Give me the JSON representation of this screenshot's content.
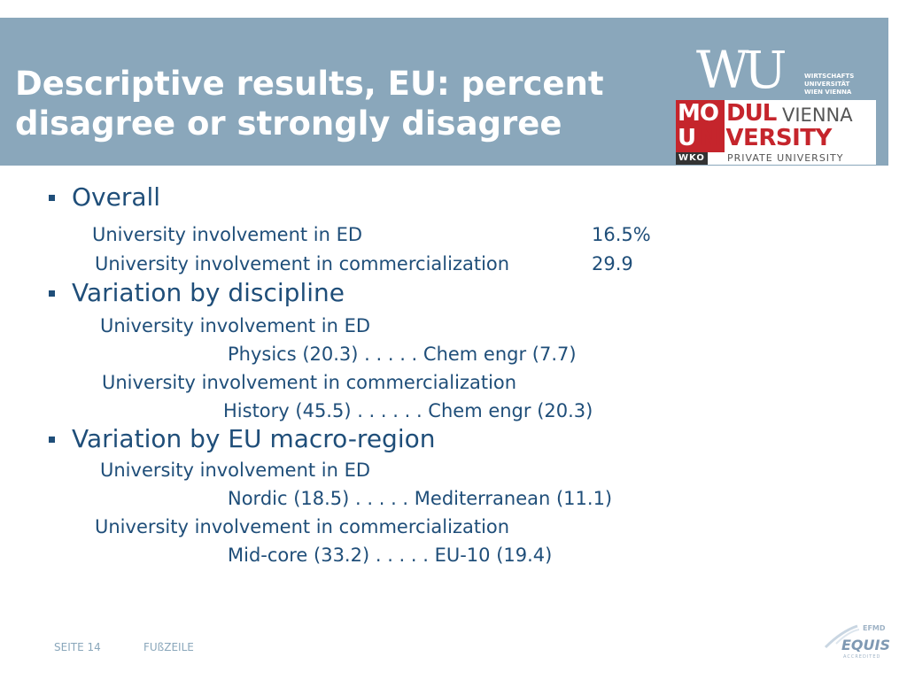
{
  "header": {
    "title_line1": "Descriptive results, EU: percent",
    "title_line2": "disagree or strongly disagree",
    "background_color": "#8aa7bb"
  },
  "logos": {
    "wu_mark": "WU",
    "wu_text": [
      "WIRTSCHAFTS",
      "UNIVERSITÄT",
      "WIEN VIENNA"
    ],
    "modul_line1_white": "MO",
    "modul_line1_red": "DUL",
    "modul_vienna": "VIENNA",
    "modul_line2_white": "U",
    "modul_line2_red": "NIVERSITY",
    "modul_wko": "WKO",
    "modul_private": "PRIVATE UNIVERSITY",
    "accent_color": "#c5252c"
  },
  "content": {
    "text_color": "#1f4e79",
    "overall": {
      "heading": "Overall",
      "ed_label": "University involvement in ED",
      "ed_value": "16.5%",
      "comm_label": "University involvement in commercialization",
      "comm_value": "29.9"
    },
    "discipline": {
      "heading": "Variation by discipline",
      "ed_label": "University involvement in ED",
      "ed_detail": "Physics (20.3)   . . . . .   Chem engr (7.7)",
      "comm_label": "University involvement in commercialization",
      "comm_detail": "History (45.5)  . . . . . .  Chem engr (20.3)"
    },
    "region": {
      "heading": "Variation by EU macro-region",
      "ed_label": "University involvement in ED",
      "ed_detail": "Nordic (18.5) . . . . .  Mediterranean (11.1)",
      "comm_label": "University involvement in commercialization",
      "comm_detail": "Mid-core (33.2)  . . . . .  EU-10 (19.4)"
    }
  },
  "footer": {
    "page": "SEITE 14",
    "label": "FUßZEILE",
    "equis_top": "EFMD",
    "equis_main": "EQUIS",
    "equis_sub": "ACCREDITED"
  }
}
